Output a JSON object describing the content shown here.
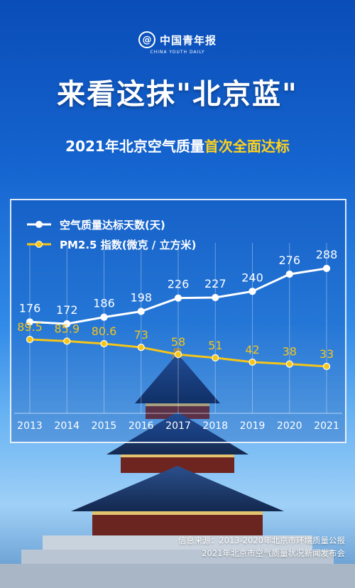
{
  "logo": {
    "mark": "@",
    "name_cn": "中国青年报",
    "name_en": "CHINA YOUTH DAILY"
  },
  "title": "来看这抹\"北京蓝\"",
  "subtitle": {
    "prefix": "2021年北京空气质量",
    "highlight": "首次全面达标"
  },
  "colors": {
    "series_days": "#ffffff",
    "series_pm25": "#f5c518",
    "highlight": "#ffd21c"
  },
  "chart_data": {
    "type": "line",
    "x": [
      "2013",
      "2014",
      "2015",
      "2016",
      "2017",
      "2018",
      "2019",
      "2020",
      "2021"
    ],
    "series": [
      {
        "name": "空气质量达标天数(天)",
        "values": [
          176,
          172,
          186,
          198,
          226,
          227,
          240,
          276,
          288
        ],
        "labels": [
          "176",
          "172",
          "186",
          "198",
          "226",
          "227",
          "240",
          "276",
          "288"
        ]
      },
      {
        "name": "PM2.5 指数(微克 / 立方米)",
        "values": [
          89.5,
          85.9,
          80.6,
          73,
          58,
          51,
          42,
          38,
          33
        ],
        "labels": [
          "89.5",
          "85.9",
          "80.6",
          "73",
          "58",
          "51",
          "42",
          "38",
          "33"
        ]
      }
    ],
    "legend_position": "top-left",
    "grid": "vertical"
  },
  "source": {
    "line1": "信息来源：2013-2020年北京市环境质量公报",
    "line2": "2021年北京市空气质量状况新闻发布会"
  }
}
